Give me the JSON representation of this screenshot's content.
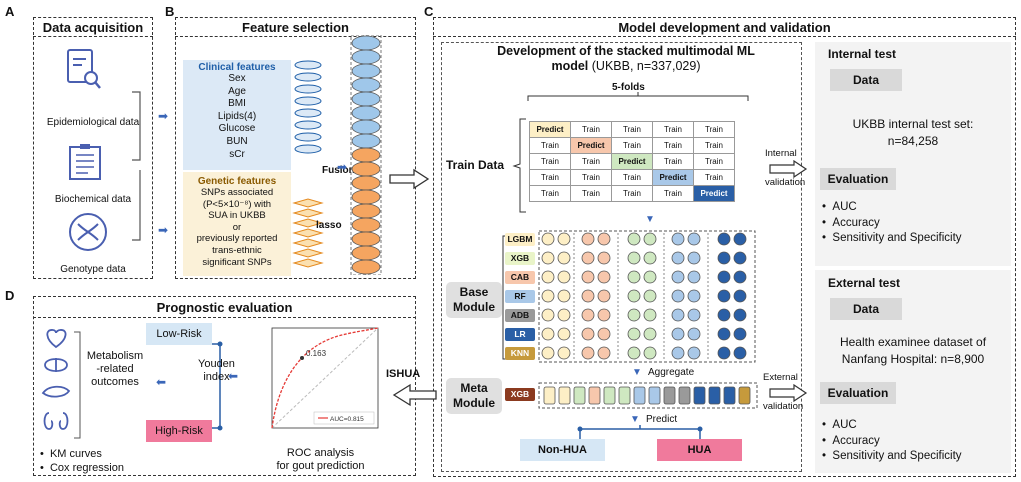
{
  "panels": {
    "A": "A",
    "B": "B",
    "C": "C",
    "D": "D"
  },
  "data_acquisition": {
    "title": "Data acquisition",
    "items": [
      "Epidemiological data",
      "Biochemical data",
      "Genotype data"
    ]
  },
  "feature_selection": {
    "title": "Feature selection",
    "clinical_title": "Clinical features",
    "clinical_items": [
      "Sex",
      "Age",
      "BMI",
      "Lipids(4)",
      "Glucose",
      "BUN",
      "sCr"
    ],
    "genetic_title": "Genetic features",
    "genetic_lines": [
      "SNPs associated",
      "(P<5×10⁻⁸) with",
      "SUA in UKBB",
      "or",
      "previously reported",
      "trans-ethnic",
      "significant  SNPs"
    ],
    "fusion": "Fusion",
    "lasso": "lasso"
  },
  "model": {
    "title": "Model development and validation",
    "dev_title_1": "Development of the stacked multimodal ML",
    "dev_title_2_bold": "model",
    "dev_title_2_rest": " (UKBB, n=337,029)",
    "folds": "5-folds",
    "train_data": "Train Data",
    "grid": [
      [
        "Predict",
        "Train",
        "Train",
        "Train",
        "Train"
      ],
      [
        "Train",
        "Predict",
        "Train",
        "Train",
        "Train"
      ],
      [
        "Train",
        "Train",
        "Predict",
        "Train",
        "Train"
      ],
      [
        "Train",
        "Train",
        "Train",
        "Predict",
        "Train"
      ],
      [
        "Train",
        "Train",
        "Train",
        "Train",
        "Predict"
      ]
    ],
    "base_module": [
      "Base",
      "Module"
    ],
    "base_models": [
      "LGBM",
      "XGB",
      "CAB",
      "RF",
      "ADB",
      "LR",
      "KNN"
    ],
    "aggregate": "Aggregate",
    "meta_module": [
      "Meta",
      "Module"
    ],
    "meta_model": "XGB",
    "predict": "Predict",
    "non_hua": "Non-HUA",
    "hua": "HUA",
    "internal_validation": [
      "Internal",
      "validation"
    ],
    "external_validation": [
      "External",
      "validation"
    ]
  },
  "internal_test": {
    "title": "Internal test",
    "data": "Data",
    "dataset_1": "UKBB internal test set:",
    "dataset_2": "n=84,258",
    "evaluation": "Evaluation",
    "metrics": [
      "AUC",
      "Accuracy",
      "Sensitivity and Specificity"
    ]
  },
  "external_test": {
    "title": "External test",
    "data": "Data",
    "dataset_1": "Health examinee dataset of",
    "dataset_2": "Nanfang Hospital: n=8,900",
    "evaluation": "Evaluation",
    "metrics": [
      "AUC",
      "Accuracy",
      "Sensitivity and Specificity"
    ]
  },
  "prognostic": {
    "title": "Prognostic evaluation",
    "low_risk": "Low-Risk",
    "high_risk": "High-Risk",
    "outcomes": [
      "Metabolism",
      "-related",
      "outcomes"
    ],
    "youden": [
      "Youden",
      "index"
    ],
    "bullets": [
      "KM curves",
      "Cox regression"
    ],
    "roc_caption": [
      "ROC analysis",
      "for gout prediction"
    ],
    "roc_point": "0.163",
    "roc_legend": "AUC=0.815",
    "ishua": "ISHUA"
  }
}
